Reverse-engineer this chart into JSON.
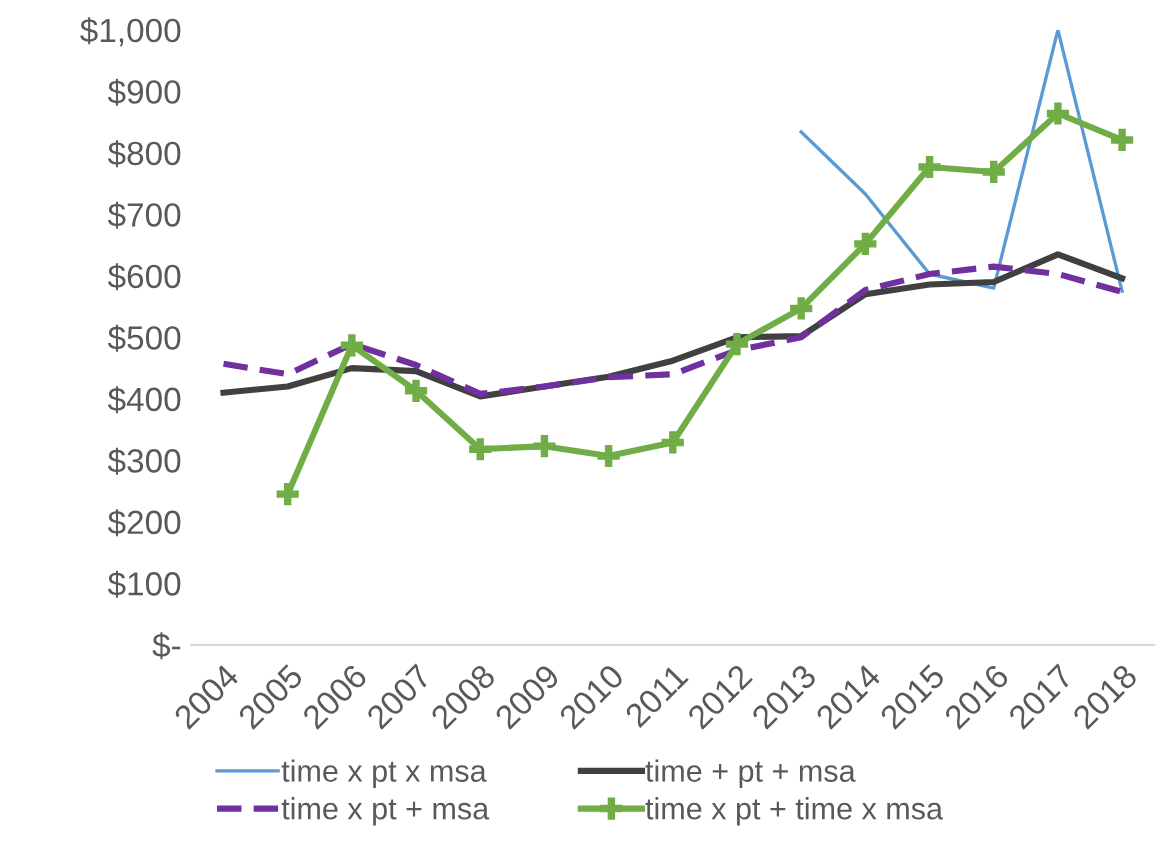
{
  "chart_data": {
    "type": "line",
    "categories": [
      "2004",
      "2005",
      "2006",
      "2007",
      "2008",
      "2009",
      "2010",
      "2011",
      "2012",
      "2013",
      "2014",
      "2015",
      "2016",
      "2017",
      "2018"
    ],
    "series": [
      {
        "name": "time x pt x msa",
        "color": "#5b9bd5",
        "line_style": "solid",
        "marker": "none",
        "values": [
          null,
          null,
          null,
          null,
          null,
          null,
          null,
          null,
          null,
          834,
          733,
          603,
          580,
          1000,
          575
        ]
      },
      {
        "name": "time + pt + msa",
        "color": "#404040",
        "line_style": "solid",
        "marker": "none",
        "values": [
          410,
          420,
          450,
          445,
          404,
          420,
          436,
          462,
          500,
          502,
          570,
          586,
          590,
          635,
          596
        ]
      },
      {
        "name": "time x pt + msa",
        "color": "#7030a0",
        "line_style": "dashed",
        "marker": "none",
        "values": [
          457,
          440,
          489,
          455,
          408,
          420,
          435,
          440,
          479,
          500,
          577,
          603,
          615,
          603,
          574
        ]
      },
      {
        "name": "time x pt + time x msa",
        "color": "#70ad47",
        "line_style": "solid",
        "marker": "cross",
        "values": [
          null,
          245,
          487,
          413,
          318,
          323,
          307,
          329,
          489,
          547,
          652,
          777,
          769,
          864,
          821
        ]
      }
    ],
    "ylim": [
      0,
      1000
    ],
    "yticks": [
      {
        "value": 0,
        "label": "$-"
      },
      {
        "value": 100,
        "label": "$100"
      },
      {
        "value": 200,
        "label": "$200"
      },
      {
        "value": 300,
        "label": "$300"
      },
      {
        "value": 400,
        "label": "$400"
      },
      {
        "value": 500,
        "label": "$500"
      },
      {
        "value": 600,
        "label": "$600"
      },
      {
        "value": 700,
        "label": "$700"
      },
      {
        "value": 800,
        "label": "$800"
      },
      {
        "value": 900,
        "label": "$900"
      },
      {
        "value": 1000,
        "label": "$1,000"
      }
    ],
    "grid": false,
    "legend": "bottom"
  }
}
